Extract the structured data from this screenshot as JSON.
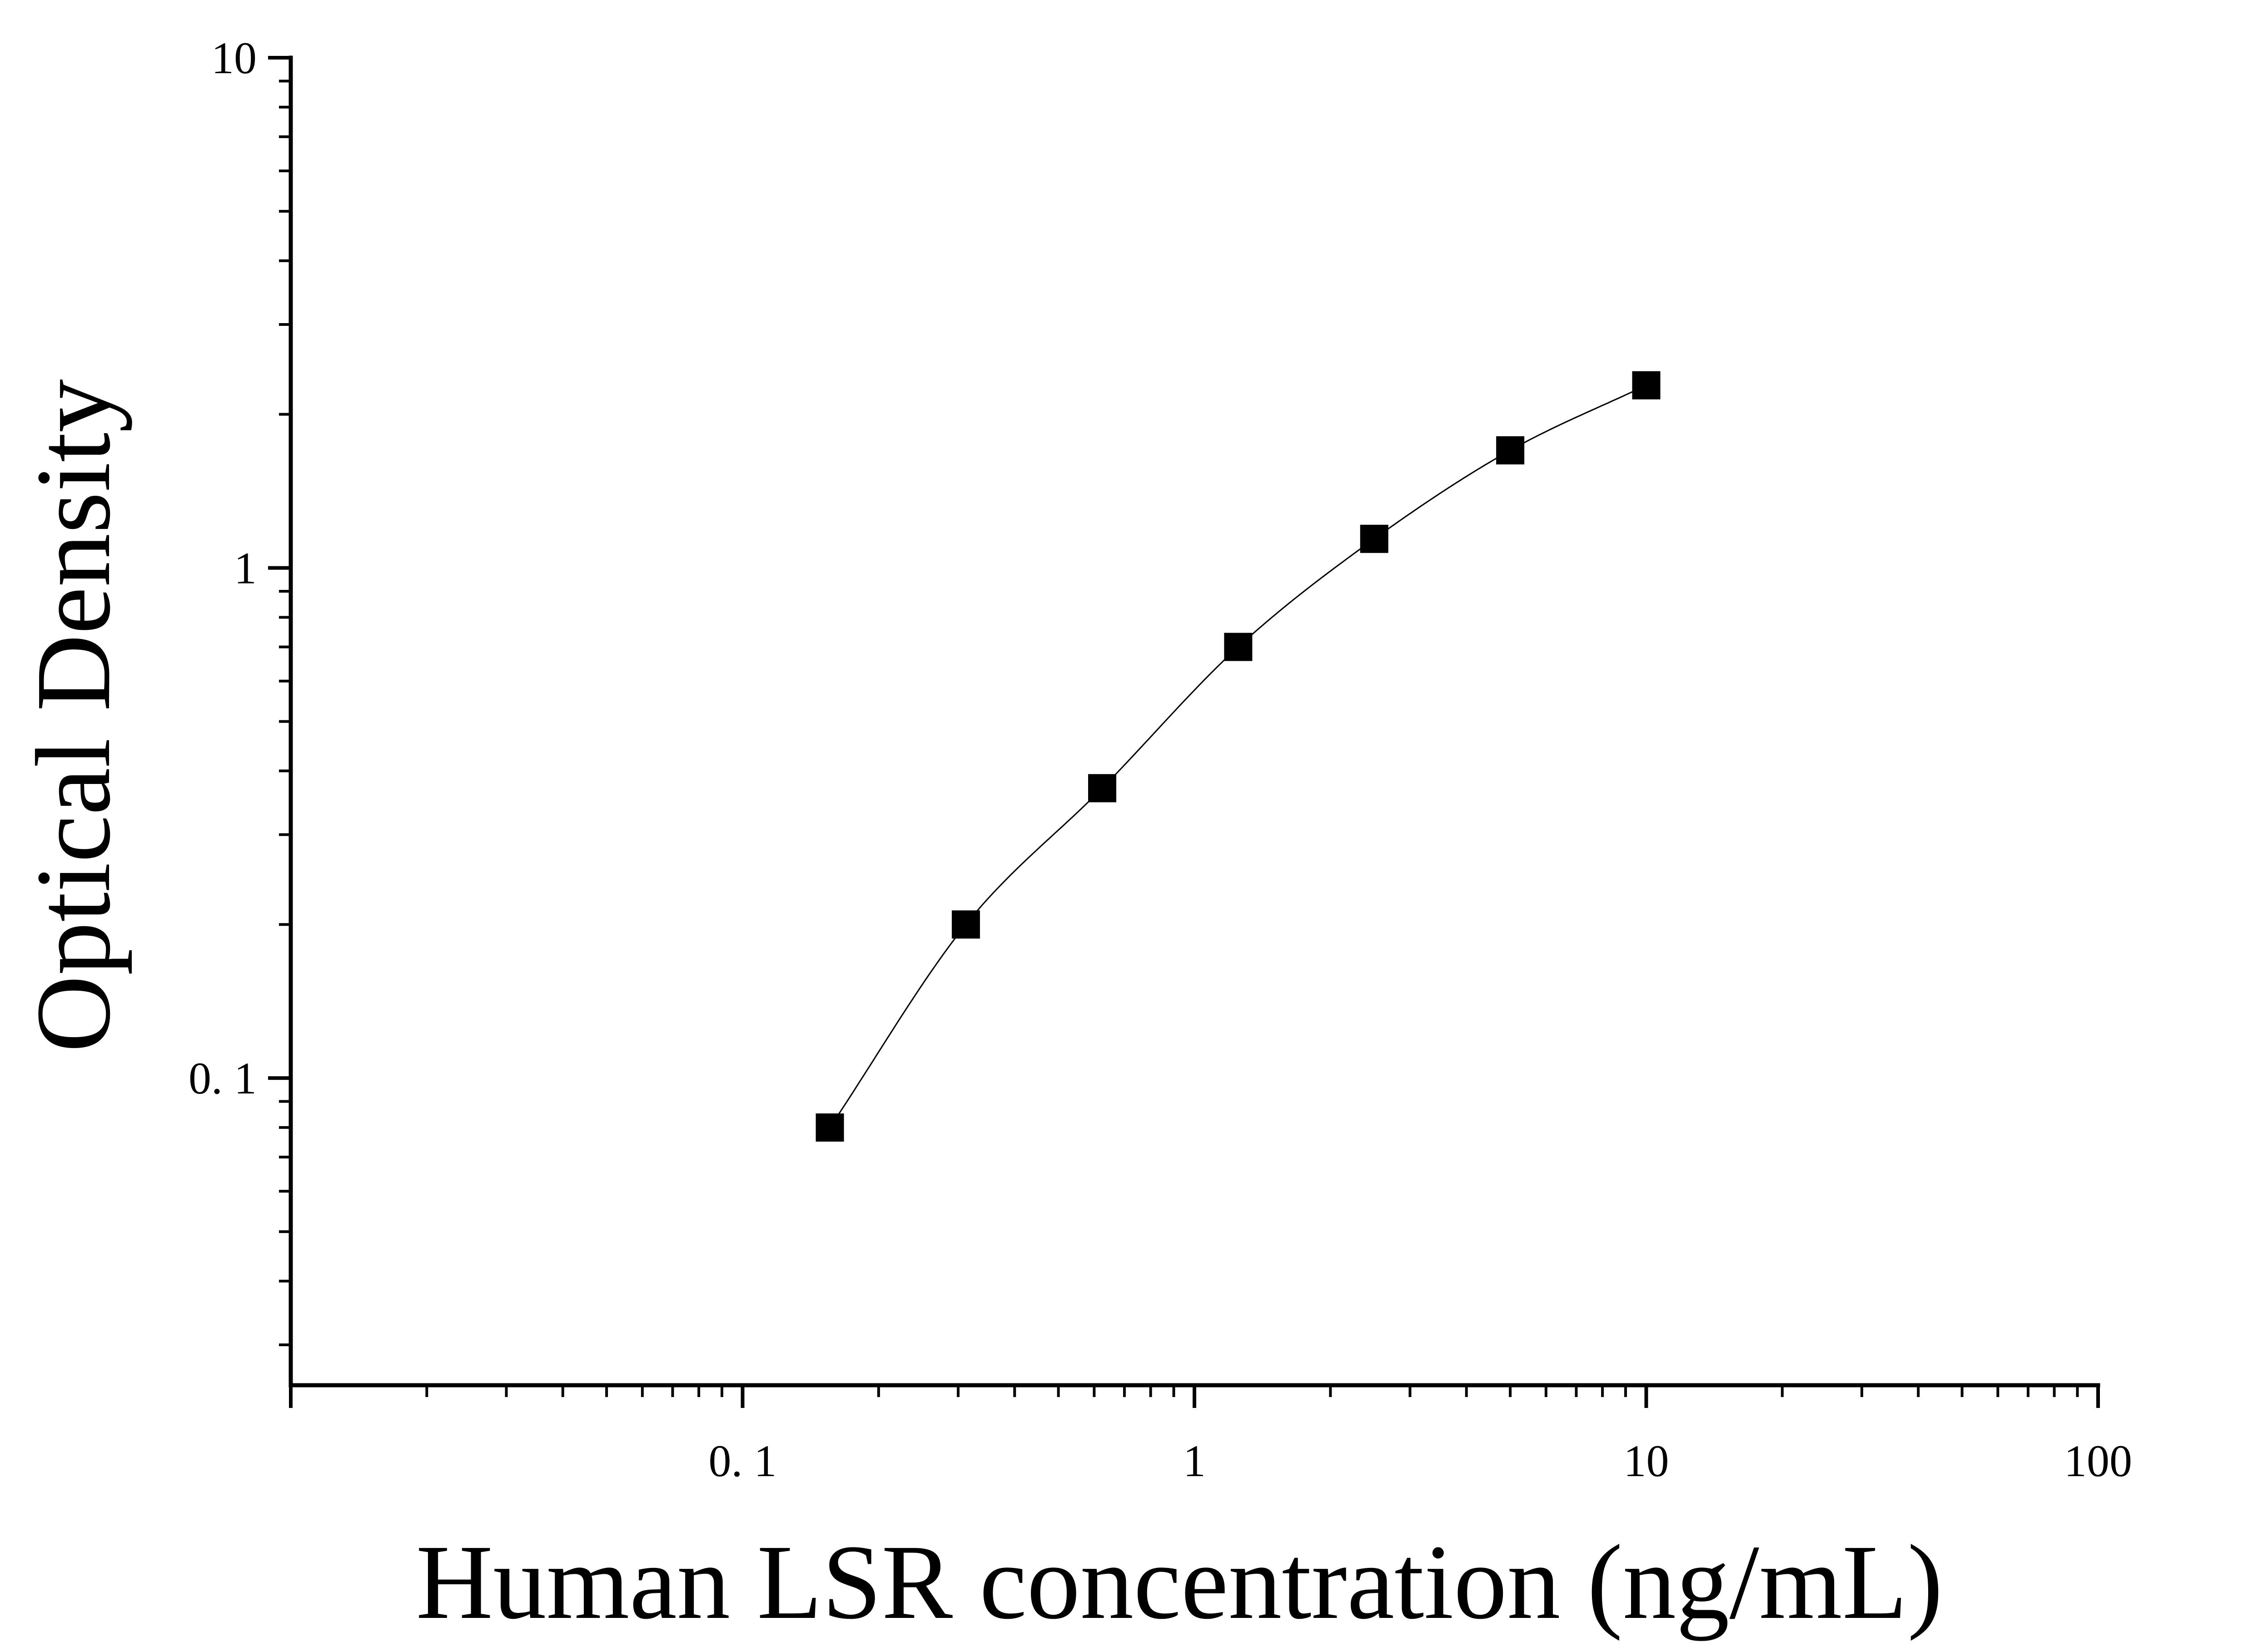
{
  "chart_data": {
    "type": "scatter",
    "title": "",
    "xlabel": "Human LSR concentration (ng/mL)",
    "ylabel": "Optical Density",
    "xscale": "log",
    "yscale": "log",
    "xlim": [
      0.01,
      100
    ],
    "ylim": [
      0.025,
      10
    ],
    "x_ticks": [
      {
        "value": 0.1,
        "label": "0. 1"
      },
      {
        "value": 1,
        "label": "1"
      },
      {
        "value": 10,
        "label": "10"
      },
      {
        "value": 100,
        "label": "100"
      }
    ],
    "y_ticks": [
      {
        "value": 0.1,
        "label": "0. 1"
      },
      {
        "value": 1,
        "label": "1"
      },
      {
        "value": 10,
        "label": "10"
      }
    ],
    "grid": false,
    "legend": "none",
    "marker": "square",
    "color": "#000000",
    "fit_curve": true,
    "series": [
      {
        "x": [
          0.156,
          0.312,
          0.625,
          1.25,
          2.5,
          5,
          10
        ],
        "y": [
          0.08,
          0.2,
          0.37,
          0.7,
          1.14,
          1.7,
          2.28
        ]
      }
    ]
  }
}
